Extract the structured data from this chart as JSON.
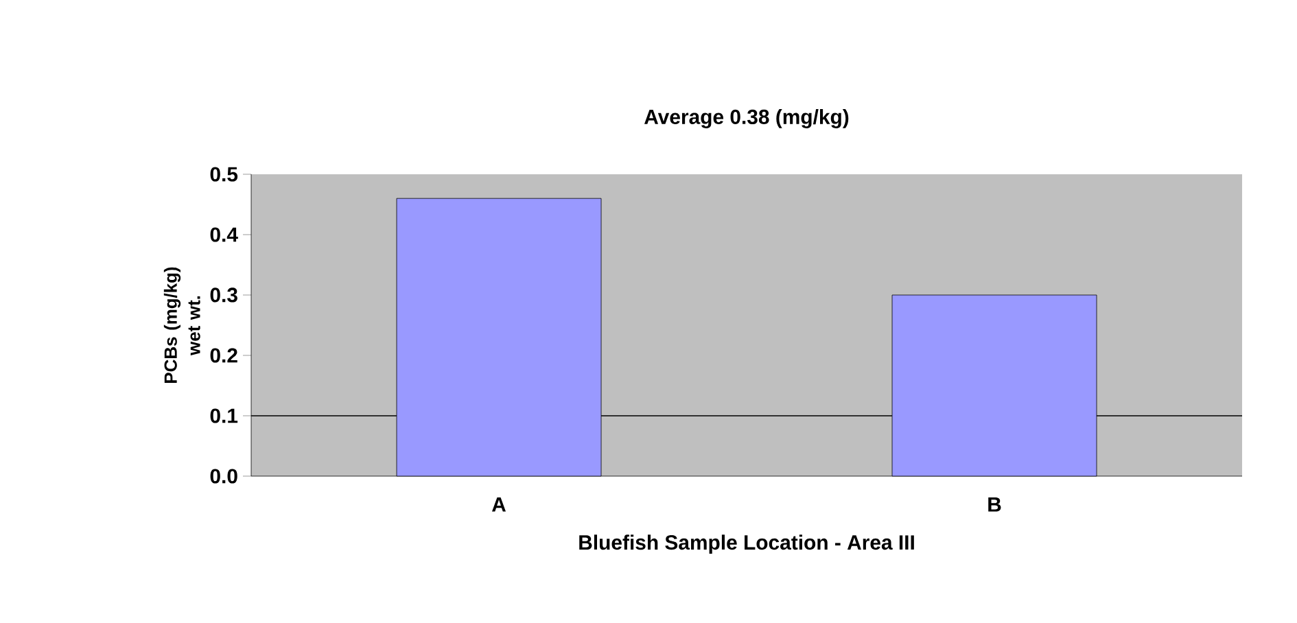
{
  "chart_data": {
    "type": "bar",
    "title": "Average 0.38 (mg/kg)",
    "xlabel": "Bluefish Sample Location - Area III",
    "ylabel": "PCBs (mg/kg) wet wt.",
    "categories": [
      "A",
      "B"
    ],
    "values": [
      0.46,
      0.3
    ],
    "color": "#9999ff",
    "ylim": [
      0,
      0.5
    ],
    "yticks": [
      {
        "value": 0,
        "label": "0.0"
      },
      {
        "value": 0.1,
        "label": "0.1"
      },
      {
        "value": 0.2,
        "label": "0.2"
      },
      {
        "value": 0.3,
        "label": "0.3"
      },
      {
        "value": 0.4,
        "label": "0.4"
      },
      {
        "value": 0.5,
        "label": "0.5"
      }
    ],
    "ref_lines": [
      {
        "axis": "y",
        "value": 0.1,
        "color": "#000000"
      }
    ]
  }
}
